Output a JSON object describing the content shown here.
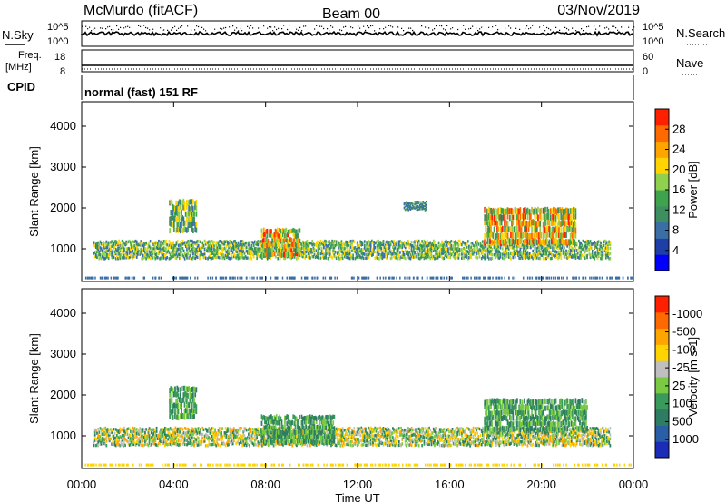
{
  "header": {
    "title": "McMurdo (fitACF)",
    "beam": "Beam 00",
    "date": "03/Nov/2019"
  },
  "strip": {
    "n_sky_label": "N.Sky",
    "n_search_label": "N.Search",
    "log_top": "10^5",
    "log_bottom": "10^0",
    "freq_label_1": "Freq.",
    "freq_label_2": "[MHz]",
    "freq_top": "18",
    "freq_bottom": "8",
    "nave_label": "Nave",
    "nave_top": "60",
    "nave_bottom": "0",
    "cpid_label": "CPID",
    "cpid_text": "normal (fast) 151 RF"
  },
  "colors": {
    "power_scale": [
      "#0000ff",
      "#1f3fa8",
      "#3a6ea5",
      "#3d8f5f",
      "#3fa34d",
      "#8fd14f",
      "#ffd400",
      "#ffa500",
      "#ff6a00",
      "#ff2000"
    ],
    "velocity_scale": [
      "#1a2cb8",
      "#2a5fa8",
      "#2e7d63",
      "#3a9a5b",
      "#7ac943",
      "#bfbfbf",
      "#ffd400",
      "#ffa500",
      "#ff6a00",
      "#ff2000"
    ]
  },
  "chart_data": [
    {
      "type": "heatmap",
      "title": "Power",
      "xlabel": "",
      "ylabel": "Slant Range [km]",
      "x_ticks": [
        "00:00",
        "04:00",
        "08:00",
        "12:00",
        "16:00",
        "20:00",
        "00:00"
      ],
      "xlim_hours": [
        0,
        24
      ],
      "y_ticks": [
        1000,
        2000,
        3000,
        4000
      ],
      "ylim": [
        200,
        4600
      ],
      "colorbar_label": "Power [dB]",
      "colorbar_ticks": [
        "4",
        "8",
        "12",
        "16",
        "20",
        "24",
        "28"
      ],
      "colorbar_range": [
        0,
        30
      ],
      "bands": [
        {
          "start": 0.5,
          "end": 23.0,
          "range_km": [
            750,
            1200
          ],
          "level": "mid"
        },
        {
          "start": 3.8,
          "end": 5.0,
          "range_km": [
            1400,
            2200
          ],
          "level": "mid"
        },
        {
          "start": 7.8,
          "end": 9.5,
          "range_km": [
            800,
            1500
          ],
          "level": "high"
        },
        {
          "start": 14.0,
          "end": 15.0,
          "range_km": [
            1950,
            2150
          ],
          "level": "low"
        },
        {
          "start": 17.5,
          "end": 21.5,
          "range_km": [
            1100,
            2000
          ],
          "level": "high"
        }
      ]
    },
    {
      "type": "heatmap",
      "title": "Velocity",
      "xlabel": "Time UT",
      "ylabel": "Slant Range [km]",
      "x_ticks": [
        "00:00",
        "04:00",
        "08:00",
        "12:00",
        "16:00",
        "20:00",
        "00:00"
      ],
      "xlim_hours": [
        0,
        24
      ],
      "y_ticks": [
        1000,
        2000,
        3000,
        4000
      ],
      "ylim": [
        200,
        4600
      ],
      "colorbar_label": "Velocity [m s-1]",
      "colorbar_ticks": [
        "1000",
        "500",
        "100",
        "25",
        "-25",
        "-100",
        "-500",
        "-1000"
      ],
      "bands": [
        {
          "start": 0.5,
          "end": 23.0,
          "range_km": [
            750,
            1200
          ],
          "level": "mixed"
        },
        {
          "start": 3.8,
          "end": 5.0,
          "range_km": [
            1400,
            2200
          ],
          "level": "positive"
        },
        {
          "start": 7.8,
          "end": 11.0,
          "range_km": [
            800,
            1500
          ],
          "level": "positive"
        },
        {
          "start": 17.5,
          "end": 22.0,
          "range_km": [
            1100,
            1900
          ],
          "level": "positive"
        }
      ]
    }
  ]
}
